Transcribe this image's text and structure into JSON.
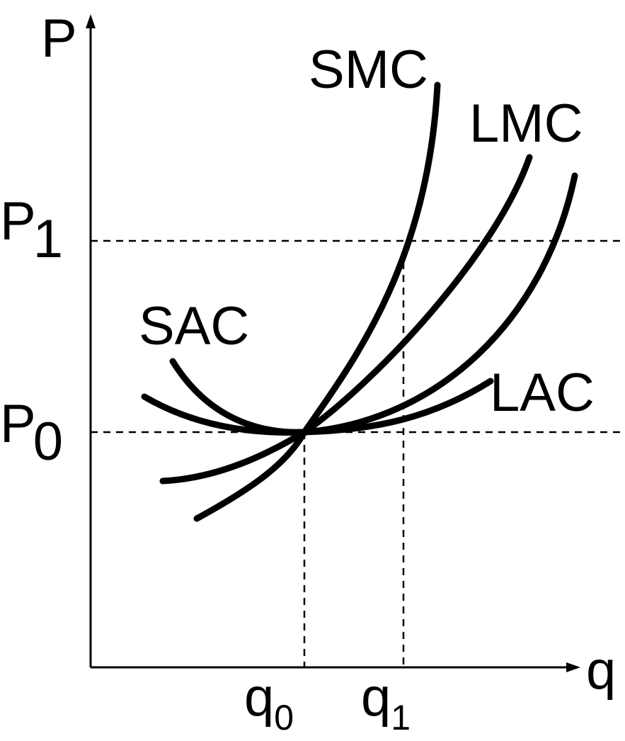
{
  "diagram": {
    "axes": {
      "y_label": "P",
      "x_label": "q"
    },
    "price_levels": [
      {
        "base": "P",
        "subscript": "1"
      },
      {
        "base": "P",
        "subscript": "0"
      }
    ],
    "quantity_levels": [
      {
        "base": "q",
        "subscript": "0"
      },
      {
        "base": "q",
        "subscript": "1"
      }
    ],
    "curves": {
      "smc": "SMC",
      "lmc": "LMC",
      "sac": "SAC",
      "lac": "LAC"
    },
    "colors": {
      "ink": "#000000",
      "background": "#ffffff"
    }
  }
}
